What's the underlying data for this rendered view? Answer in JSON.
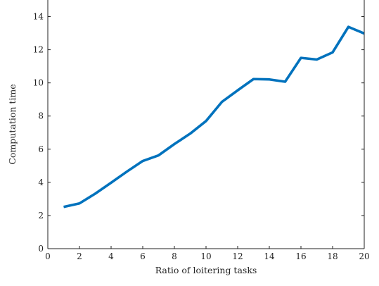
{
  "chart_data": {
    "type": "line",
    "title": "",
    "xlabel": "Ratio of loitering tasks",
    "ylabel": "Computation time",
    "xlim": [
      0,
      20
    ],
    "ylim": [
      0,
      15
    ],
    "x_ticks": [
      0,
      2,
      4,
      6,
      8,
      10,
      12,
      14,
      16,
      18,
      20
    ],
    "y_ticks": [
      0,
      2,
      4,
      6,
      8,
      10,
      12,
      14
    ],
    "grid": false,
    "legend": "none",
    "series": [
      {
        "color": "#0072bd",
        "x": [
          1,
          2,
          3,
          4,
          5,
          6,
          7,
          8,
          9,
          10,
          11,
          12,
          13,
          14,
          15,
          16,
          17,
          18,
          19,
          20
        ],
        "y": [
          2.52,
          2.73,
          3.32,
          3.98,
          4.65,
          5.29,
          5.63,
          6.31,
          6.94,
          7.7,
          8.85,
          9.55,
          10.23,
          10.21,
          10.07,
          11.51,
          11.41,
          11.84,
          13.38,
          12.98
        ]
      }
    ]
  }
}
